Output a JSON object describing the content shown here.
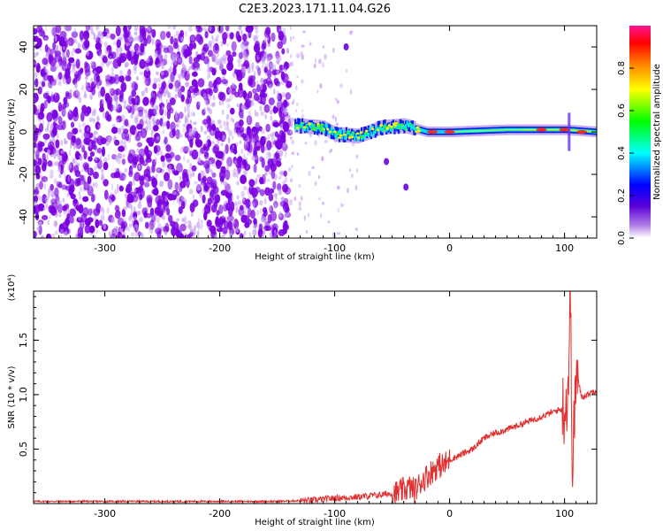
{
  "figure_title": "C2E3.2023.171.11.04.G26",
  "chart_data": [
    {
      "type": "heatmap",
      "xlabel": "Height of straight line (km)",
      "ylabel": "Frequency (Hz)",
      "xlim": [
        -362,
        128
      ],
      "ylim": [
        -50,
        50
      ],
      "x_ticks": [
        -300,
        -200,
        -100,
        0,
        100
      ],
      "x_tick_labels": [
        "-300",
        "-200",
        "-100",
        "0",
        "100"
      ],
      "y_ticks": [
        -40,
        -20,
        0,
        20,
        40
      ],
      "y_tick_labels": [
        "-40",
        "-20",
        "0",
        "20",
        "40"
      ],
      "colorbar": {
        "label": "Normalized spectral amplitude",
        "range": [
          0.0,
          1.0
        ],
        "ticks": [
          0.0,
          0.2,
          0.4,
          0.6,
          0.8
        ],
        "tick_labels": [
          "0.0",
          "0.2",
          "0.4",
          "0.6",
          "0.8"
        ],
        "colormap": [
          "#ffffff",
          "#8a2be2",
          "#0000ff",
          "#00ffff",
          "#00ff00",
          "#ffff00",
          "#ff8000",
          "#ff0000",
          "#ff1493"
        ]
      },
      "regions": [
        {
          "x_range": [
            -362,
            -138
          ],
          "y_range": [
            -50,
            50
          ],
          "value_range": [
            0.05,
            0.2
          ],
          "color": "#7b00e0"
        },
        {
          "x_range": [
            -138,
            -80
          ],
          "y_range": [
            -50,
            50
          ],
          "value_range": [
            0.0,
            0.1
          ],
          "color": "#c9a0f5"
        },
        {
          "x_range": [
            -138,
            128
          ],
          "y_range": [
            -3,
            4
          ],
          "value_range": [
            0.3,
            0.95
          ],
          "color": "#00c8ff"
        }
      ],
      "signal_track": [
        {
          "x": -135,
          "y": 3
        },
        {
          "x": -110,
          "y": 2
        },
        {
          "x": -100,
          "y": -1
        },
        {
          "x": -80,
          "y": -2
        },
        {
          "x": -60,
          "y": 2
        },
        {
          "x": -40,
          "y": 3
        },
        {
          "x": -20,
          "y": 0
        },
        {
          "x": 0,
          "y": 0
        },
        {
          "x": 50,
          "y": 1
        },
        {
          "x": 100,
          "y": 1
        },
        {
          "x": 128,
          "y": 0
        }
      ],
      "peak_points": [
        {
          "x": -15,
          "y": 0,
          "value": 0.9
        },
        {
          "x": 0,
          "y": 0,
          "value": 0.85
        },
        {
          "x": 80,
          "y": 1,
          "value": 0.9
        },
        {
          "x": 100,
          "y": 1,
          "value": 0.95
        },
        {
          "x": 115,
          "y": 0,
          "value": 0.9
        }
      ],
      "side_blobs": [
        {
          "x": -55,
          "y": -14
        },
        {
          "x": -38,
          "y": -26
        },
        {
          "x": -90,
          "y": 40
        }
      ]
    },
    {
      "type": "line",
      "xlabel": "Height of straight line (km)",
      "ylabel": "SNR (10 * v/v)",
      "scale_label": "(x10⁴)",
      "xlim": [
        -362,
        128
      ],
      "ylim": [
        0.0,
        1.95
      ],
      "x_ticks": [
        -300,
        -200,
        -100,
        0,
        100
      ],
      "x_tick_labels": [
        "-300",
        "-200",
        "-100",
        "0",
        "100"
      ],
      "y_ticks": [
        0.5,
        1.0,
        1.5
      ],
      "y_tick_labels": [
        "0.5",
        "1.0",
        "1.5"
      ],
      "color": "#e03030",
      "series": [
        {
          "x": [
            -362,
            -300,
            -250,
            -200,
            -150,
            -120,
            -100,
            -80,
            -60,
            -45,
            -35,
            -30,
            -25,
            -20,
            -15,
            -10,
            -5,
            0,
            10,
            20,
            30,
            40,
            50,
            60,
            70,
            80,
            90,
            95,
            100,
            103,
            105,
            107,
            110,
            115,
            120,
            128
          ],
          "y": [
            0.02,
            0.02,
            0.02,
            0.02,
            0.02,
            0.03,
            0.05,
            0.06,
            0.08,
            0.1,
            0.15,
            0.12,
            0.2,
            0.25,
            0.3,
            0.35,
            0.35,
            0.4,
            0.45,
            0.5,
            0.6,
            0.65,
            0.68,
            0.72,
            0.76,
            0.8,
            0.84,
            0.86,
            0.88,
            1.0,
            1.95,
            0.3,
            1.2,
            0.98,
            1.0,
            1.05
          ]
        }
      ]
    }
  ]
}
